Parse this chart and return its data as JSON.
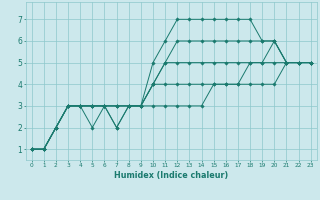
{
  "xlabel": "Humidex (Indice chaleur)",
  "background_color": "#cce8ec",
  "grid_color": "#8ec8cc",
  "line_color": "#1a7a6e",
  "xlim": [
    -0.5,
    23.5
  ],
  "ylim": [
    0.5,
    7.8
  ],
  "xticks": [
    0,
    1,
    2,
    3,
    4,
    5,
    6,
    7,
    8,
    9,
    10,
    11,
    12,
    13,
    14,
    15,
    16,
    17,
    18,
    19,
    20,
    21,
    22,
    23
  ],
  "yticks": [
    1,
    2,
    3,
    4,
    5,
    6,
    7
  ],
  "series": [
    [
      1,
      1,
      2,
      3,
      3,
      3,
      3,
      2,
      3,
      3,
      5,
      6,
      7,
      7,
      7,
      7,
      7,
      7,
      7,
      6,
      6,
      5,
      5,
      5
    ],
    [
      1,
      1,
      2,
      3,
      3,
      2,
      3,
      2,
      3,
      3,
      4,
      5,
      6,
      6,
      6,
      6,
      6,
      6,
      6,
      6,
      6,
      5,
      5,
      5
    ],
    [
      1,
      1,
      2,
      3,
      3,
      3,
      3,
      3,
      3,
      3,
      4,
      5,
      5,
      5,
      5,
      5,
      5,
      5,
      5,
      5,
      6,
      5,
      5,
      5
    ],
    [
      1,
      1,
      2,
      3,
      3,
      3,
      3,
      3,
      3,
      3,
      4,
      4,
      4,
      4,
      4,
      4,
      4,
      4,
      5,
      5,
      5,
      5,
      5,
      5
    ],
    [
      1,
      1,
      2,
      3,
      3,
      3,
      3,
      3,
      3,
      3,
      3,
      3,
      3,
      3,
      3,
      4,
      4,
      4,
      4,
      4,
      4,
      5,
      5,
      5
    ]
  ]
}
